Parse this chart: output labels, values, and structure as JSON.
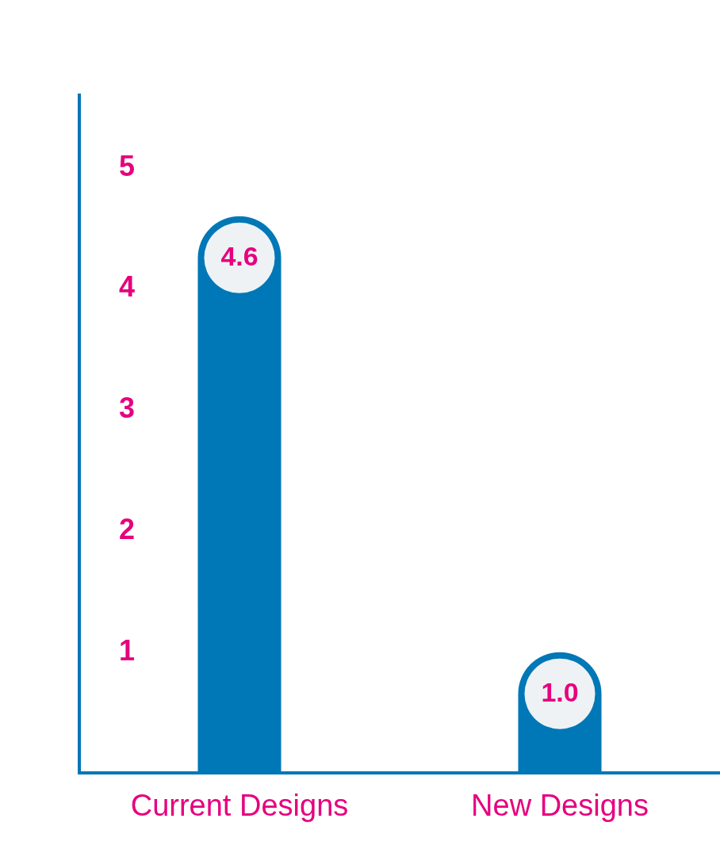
{
  "chart_data": {
    "type": "bar",
    "categories": [
      "Current Designs",
      "New Designs"
    ],
    "values": [
      4.6,
      1.0
    ],
    "color": "#0077b6",
    "value_labels": [
      "4.6",
      "1.0"
    ],
    "ylim": [
      0,
      5.6
    ],
    "yticks": [
      1,
      2,
      3,
      4,
      5
    ],
    "grid": false,
    "legend": false
  }
}
